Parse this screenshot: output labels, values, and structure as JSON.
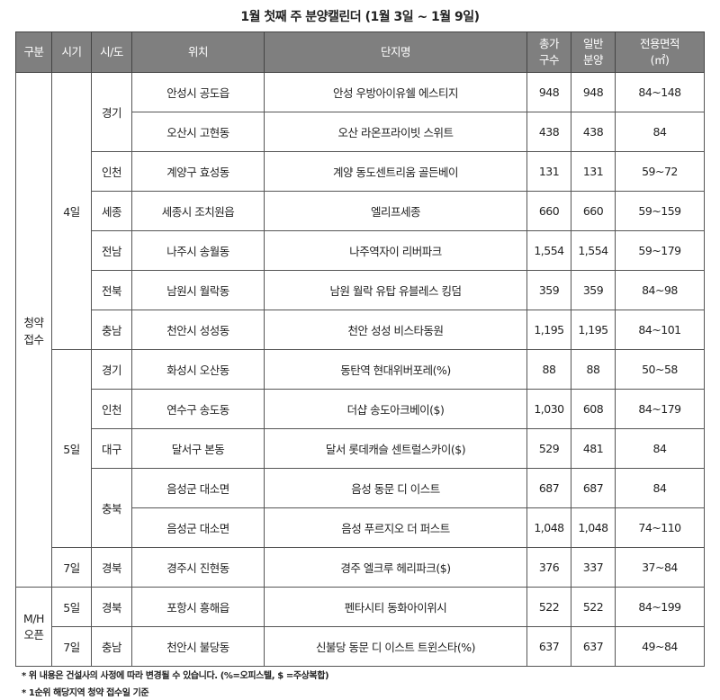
{
  "title": "1월 첫째 주 분양캘린더 (1월 3일 ~ 1월 9일)",
  "headers": [
    "구분",
    "시기",
    "시/도",
    "위치",
    "단지명",
    "총가\n구수",
    "일반\n분양",
    "전용면적\n(㎡)"
  ],
  "groups": [
    {
      "category": "청약\n접수",
      "periods": [
        {
          "date": "4일",
          "regions": [
            {
              "region": "경기",
              "rows": [
                [
                  "안성시 공도읍",
                  "안성 우방아이유쉘 에스티지",
                  "948",
                  "948",
                  "84~148"
                ],
                [
                  "오산시 고현동",
                  "오산 라온프라이빗 스위트",
                  "438",
                  "438",
                  "84"
                ]
              ]
            },
            {
              "region": "인천",
              "rows": [
                [
                  "계양구 효성동",
                  "계양 동도센트리움 골든베이",
                  "131",
                  "131",
                  "59~72"
                ]
              ]
            },
            {
              "region": "세종",
              "rows": [
                [
                  "세종시 조치원읍",
                  "엘리프세종",
                  "660",
                  "660",
                  "59~159"
                ]
              ]
            },
            {
              "region": "전남",
              "rows": [
                [
                  "나주시 송월동",
                  "나주역자이 리버파크",
                  "1,554",
                  "1,554",
                  "59~179"
                ]
              ]
            },
            {
              "region": "전북",
              "rows": [
                [
                  "남원시 월락동",
                  "남원 월락 유탑 유블레스 킹덤",
                  "359",
                  "359",
                  "84~98"
                ]
              ]
            },
            {
              "region": "충남",
              "rows": [
                [
                  "천안시 성성동",
                  "천안 성성 비스타동원",
                  "1,195",
                  "1,195",
                  "84~101"
                ]
              ]
            }
          ]
        },
        {
          "date": "5일",
          "regions": [
            {
              "region": "경기",
              "rows": [
                [
                  "화성시 오산동",
                  "동탄역 현대위버포레(%)",
                  "88",
                  "88",
                  "50~58"
                ]
              ]
            },
            {
              "region": "인천",
              "rows": [
                [
                  "연수구 송도동",
                  "더샵 송도아크베이($)",
                  "1,030",
                  "608",
                  "84~179"
                ]
              ]
            },
            {
              "region": "대구",
              "rows": [
                [
                  "달서구 본동",
                  "달서 롯데캐슬 센트럴스카이($)",
                  "529",
                  "481",
                  "84"
                ]
              ]
            },
            {
              "region": "충북",
              "rows": [
                [
                  "음성군 대소면",
                  "음성 동문 디 이스트",
                  "687",
                  "687",
                  "84"
                ],
                [
                  "음성군 대소면",
                  "음성 푸르지오 더 퍼스트",
                  "1,048",
                  "1,048",
                  "74~110"
                ]
              ]
            }
          ]
        },
        {
          "date": "7일",
          "regions": [
            {
              "region": "경북",
              "rows": [
                [
                  "경주시 진현동",
                  "경주 엘크루 헤리파크($)",
                  "376",
                  "337",
                  "37~84"
                ]
              ]
            }
          ]
        }
      ]
    },
    {
      "category": "M/H\n오픈",
      "periods": [
        {
          "date": "5일",
          "regions": [
            {
              "region": "경북",
              "rows": [
                [
                  "포항시 흥해읍",
                  "펜타시티 동화아이위시",
                  "522",
                  "522",
                  "84~199"
                ]
              ]
            }
          ]
        },
        {
          "date": "7일",
          "regions": [
            {
              "region": "충남",
              "rows": [
                [
                  "천안시 불당동",
                  "신불당 동문 디 이스트 트윈스타(%)",
                  "637",
                  "637",
                  "49~84"
                ]
              ]
            }
          ]
        }
      ]
    }
  ],
  "notes": [
    "* 위 내용은 건설사의 사정에 따라 변경될 수 있습니다. (%=오피스텔, $ =주상복합)",
    "* 1순위 해당지역 청약 접수일 기준"
  ]
}
